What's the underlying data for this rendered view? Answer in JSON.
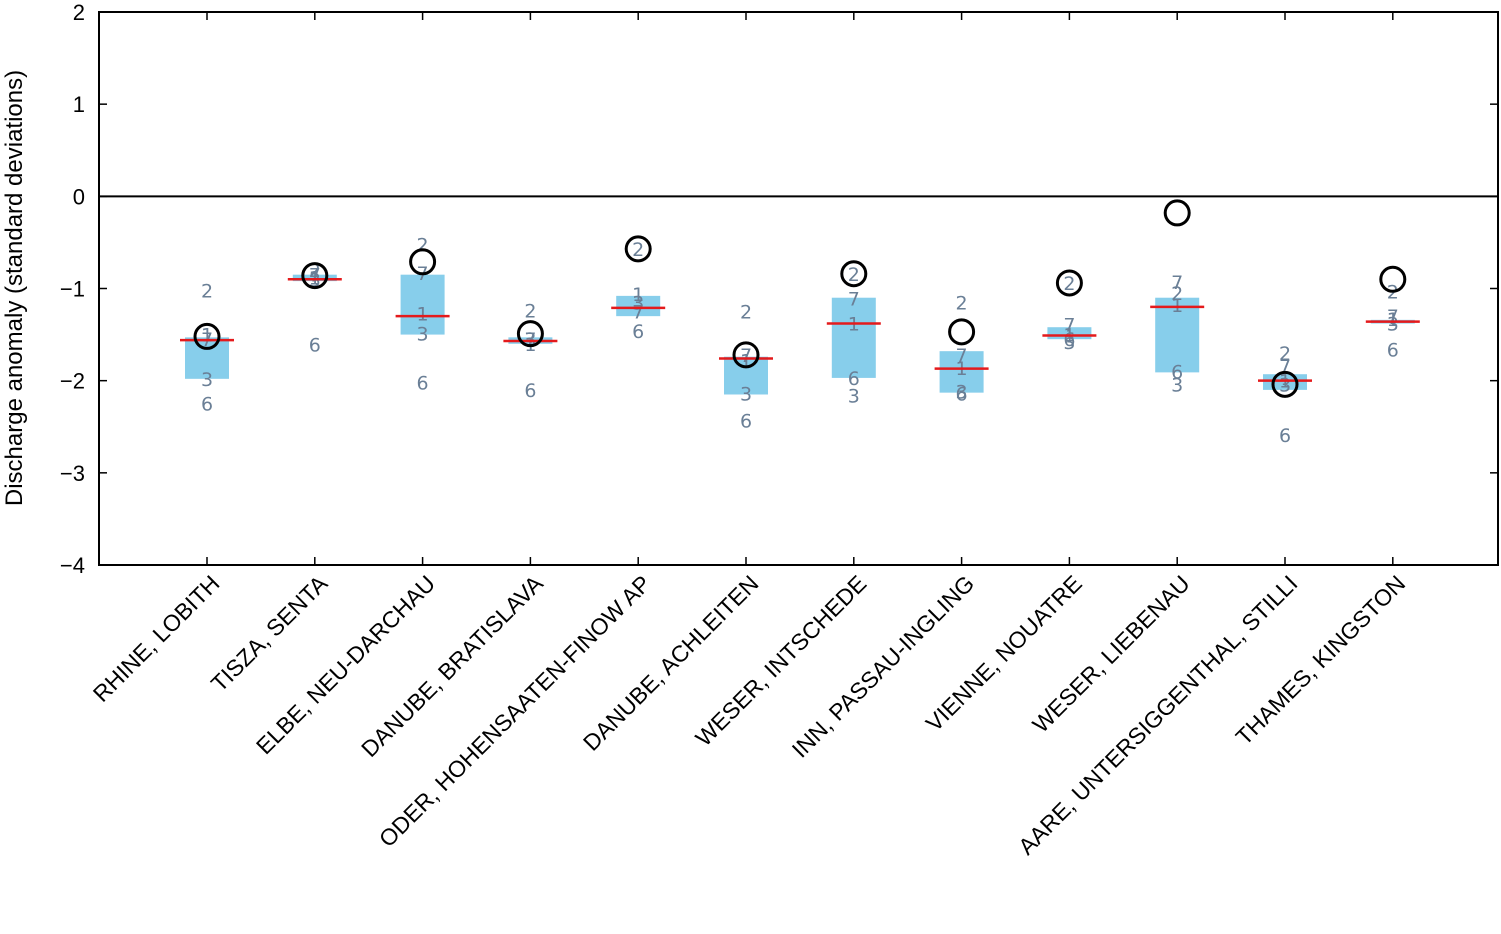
{
  "chart_data": {
    "type": "box",
    "title": "",
    "xlabel": "",
    "ylabel": "Discharge anomaly (standard deviations)",
    "ylim": [
      -4,
      2
    ],
    "yticks": [
      2,
      1,
      0,
      -1,
      -2,
      -3,
      -4
    ],
    "ytick_labels": [
      "2",
      "1",
      "0",
      "−1",
      "−2",
      "−3",
      "−4"
    ],
    "zero_line": 0,
    "categories": [
      "RHINE, LOBITH",
      "TISZA, SENTA",
      "ELBE, NEU-DARCHAU",
      "DANUBE, BRATISLAVA",
      "ODER, HOHENSAATEN-FINOW AP",
      "DANUBE, ACHLEITEN",
      "WESER, INTSCHEDE",
      "INN, PASSAU-INGLING",
      "VIENNE, NOUATRE",
      "WESER, LIEBENAU",
      "AARE, UNTERSIGGENTHAL, STILLI",
      "THAMES, KINGSTON"
    ],
    "box_low": [
      -1.98,
      -0.92,
      -1.5,
      -1.6,
      -1.3,
      -2.15,
      -1.97,
      -2.13,
      -1.55,
      -1.91,
      -2.1,
      -1.38
    ],
    "box_high": [
      -1.53,
      -0.85,
      -0.85,
      -1.53,
      -1.08,
      -1.74,
      -1.1,
      -1.68,
      -1.42,
      -1.1,
      -1.93,
      -1.34
    ],
    "median": [
      -1.56,
      -0.9,
      -1.3,
      -1.57,
      -1.21,
      -1.76,
      -1.38,
      -1.87,
      -1.51,
      -1.2,
      -2.0,
      -1.36
    ],
    "observed": [
      -1.52,
      -0.86,
      -0.71,
      -1.49,
      -0.57,
      -1.72,
      -0.84,
      -1.47,
      -0.94,
      -0.18,
      -2.04,
      -0.9
    ],
    "members": [
      [
        {
          "label": "2",
          "value": -1.02
        },
        {
          "label": "7",
          "value": -1.55
        },
        {
          "label": "1",
          "value": -1.5
        },
        {
          "label": "3",
          "value": -1.98
        },
        {
          "label": "6",
          "value": -2.25
        }
      ],
      [
        {
          "label": "2",
          "value": -0.8
        },
        {
          "label": "7",
          "value": -0.85
        },
        {
          "label": "1",
          "value": -0.88
        },
        {
          "label": "3",
          "value": -0.9
        },
        {
          "label": "6",
          "value": -1.61
        }
      ],
      [
        {
          "label": "2",
          "value": -0.52
        },
        {
          "label": "7",
          "value": -0.83
        },
        {
          "label": "1",
          "value": -1.27
        },
        {
          "label": "3",
          "value": -1.49
        },
        {
          "label": "6",
          "value": -2.02
        }
      ],
      [
        {
          "label": "2",
          "value": -1.24
        },
        {
          "label": "7",
          "value": -1.55
        },
        {
          "label": "1",
          "value": -1.6
        },
        {
          "label": "3",
          "value": -1.55
        },
        {
          "label": "6",
          "value": -2.1
        }
      ],
      [
        {
          "label": "2",
          "value": -0.57
        },
        {
          "label": "1",
          "value": -1.06
        },
        {
          "label": "3",
          "value": -1.15
        },
        {
          "label": "7",
          "value": -1.25
        },
        {
          "label": "6",
          "value": -1.46
        }
      ],
      [
        {
          "label": "2",
          "value": -1.25
        },
        {
          "label": "7",
          "value": -1.72
        },
        {
          "label": "1",
          "value": -1.78
        },
        {
          "label": "3",
          "value": -2.14
        },
        {
          "label": "6",
          "value": -2.43
        }
      ],
      [
        {
          "label": "2",
          "value": -0.84
        },
        {
          "label": "7",
          "value": -1.11
        },
        {
          "label": "1",
          "value": -1.38
        },
        {
          "label": "6",
          "value": -1.97
        },
        {
          "label": "3",
          "value": -2.16
        }
      ],
      [
        {
          "label": "2",
          "value": -1.15
        },
        {
          "label": "7",
          "value": -1.72
        },
        {
          "label": "1",
          "value": -1.86
        },
        {
          "label": "3",
          "value": -2.12
        },
        {
          "label": "6",
          "value": -2.14
        }
      ],
      [
        {
          "label": "2",
          "value": -0.94
        },
        {
          "label": "7",
          "value": -1.39
        },
        {
          "label": "1",
          "value": -1.5
        },
        {
          "label": "3",
          "value": -1.58
        },
        {
          "label": "6",
          "value": -1.55
        }
      ],
      [
        {
          "label": "7",
          "value": -0.93
        },
        {
          "label": "2",
          "value": -1.05
        },
        {
          "label": "1",
          "value": -1.18
        },
        {
          "label": "6",
          "value": -1.9
        },
        {
          "label": "3",
          "value": -2.04
        }
      ],
      [
        {
          "label": "2",
          "value": -1.7
        },
        {
          "label": "7",
          "value": -1.84
        },
        {
          "label": "1",
          "value": -2.0
        },
        {
          "label": "3",
          "value": -2.04
        },
        {
          "label": "6",
          "value": -2.59
        }
      ],
      [
        {
          "label": "2",
          "value": -1.03
        },
        {
          "label": "1",
          "value": -1.33
        },
        {
          "label": "3",
          "value": -1.38
        },
        {
          "label": "7",
          "value": -1.3
        },
        {
          "label": "6",
          "value": -1.66
        }
      ]
    ],
    "colors": {
      "box": "#87ceeb",
      "median": "#e41a1c",
      "member_label": "#6a7f96",
      "observed": "#000000",
      "axis": "#000000"
    }
  }
}
